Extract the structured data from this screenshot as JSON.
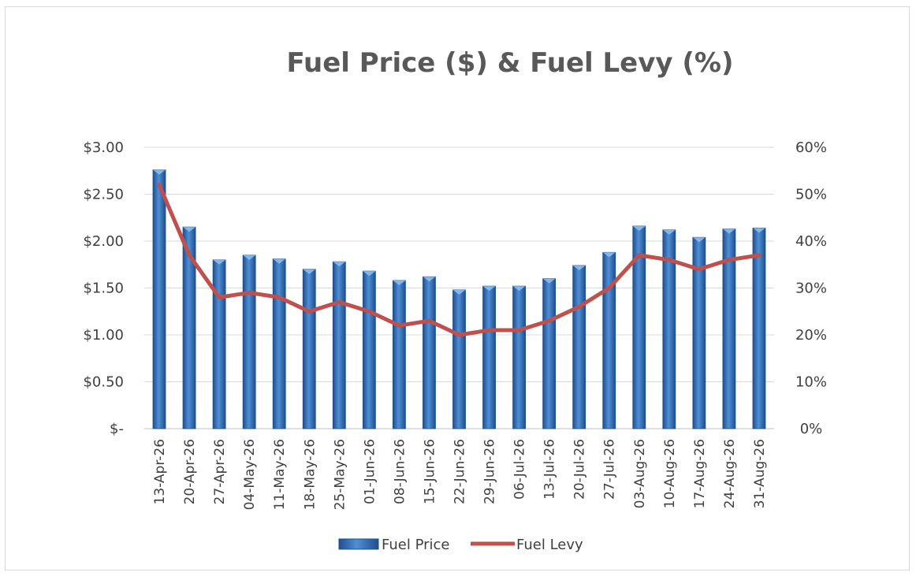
{
  "chart_data": {
    "type": "bar",
    "title": "Fuel Price ($) & Fuel Levy (%)",
    "categories": [
      "13-Apr-26",
      "20-Apr-26",
      "27-Apr-26",
      "04-May-26",
      "11-May-26",
      "18-May-26",
      "25-May-26",
      "01-Jun-26",
      "08-Jun-26",
      "15-Jun-26",
      "22-Jun-26",
      "29-Jun-26",
      "06-Jul-26",
      "13-Jul-26",
      "20-Jul-26",
      "27-Jul-26",
      "03-Aug-26",
      "10-Aug-26",
      "17-Aug-26",
      "24-Aug-26",
      "31-Aug-26"
    ],
    "series": [
      {
        "name": "Fuel Price",
        "type": "bar",
        "axis": "left",
        "color": "#2f6db5",
        "values": [
          2.76,
          2.15,
          1.8,
          1.85,
          1.81,
          1.7,
          1.78,
          1.68,
          1.58,
          1.62,
          1.48,
          1.52,
          1.52,
          1.6,
          1.74,
          1.88,
          2.16,
          2.12,
          2.04,
          2.13,
          2.14
        ]
      },
      {
        "name": "Fuel Levy",
        "type": "line",
        "axis": "right",
        "color": "#c0504d",
        "values": [
          52,
          37,
          28,
          29,
          28,
          25,
          27,
          25,
          22,
          23,
          20,
          21,
          21,
          23,
          26,
          30,
          37,
          36,
          34,
          36,
          37
        ]
      }
    ],
    "y_left": {
      "min": 0,
      "max": 3.0,
      "step": 0.5,
      "tick_labels": [
        "$-",
        "$0.50",
        "$1.00",
        "$1.50",
        "$2.00",
        "$2.50",
        "$3.00"
      ]
    },
    "y_right": {
      "min": 0,
      "max": 60,
      "step": 10,
      "tick_labels": [
        "0%",
        "10%",
        "20%",
        "30%",
        "40%",
        "50%",
        "60%"
      ]
    },
    "grid": true,
    "legend_position": "bottom"
  }
}
